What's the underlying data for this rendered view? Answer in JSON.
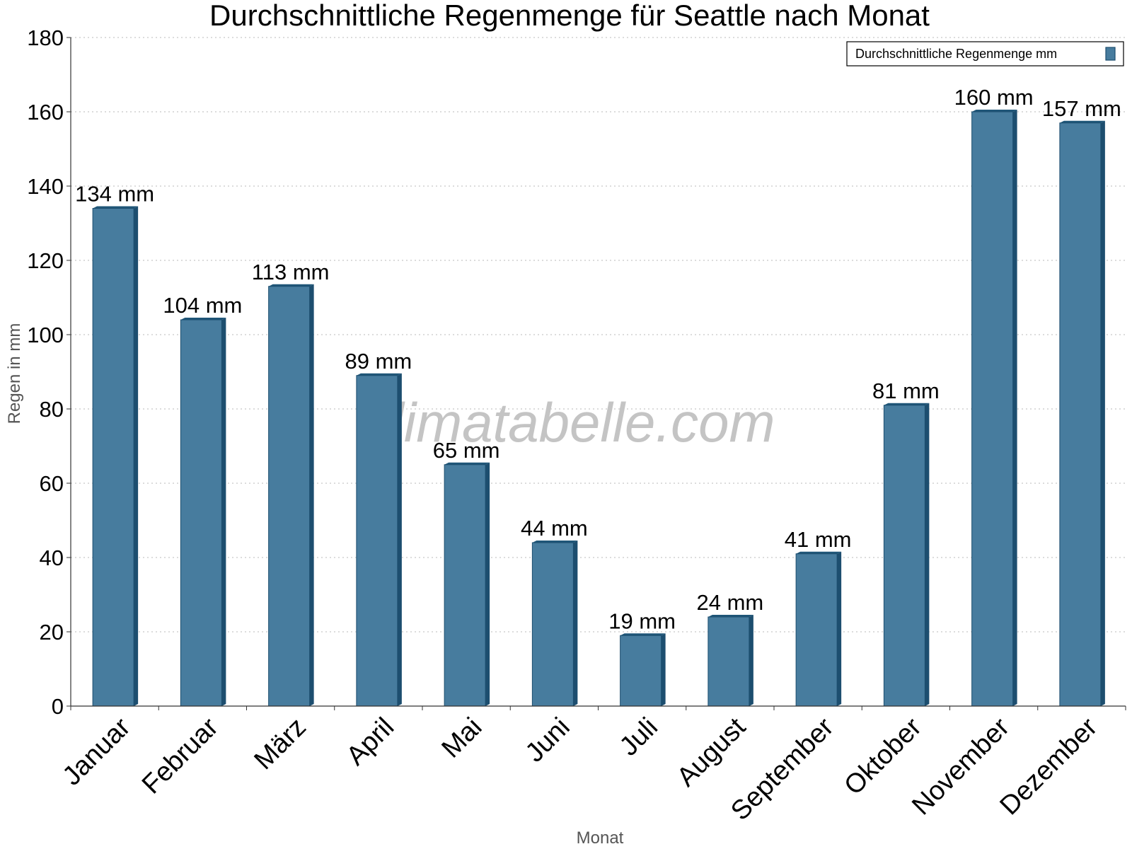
{
  "chart_data": {
    "type": "bar",
    "title": "Durchschnittliche Regenmenge für Seattle nach Monat",
    "xlabel": "Monat",
    "ylabel": "Regen in mm",
    "categories": [
      "Januar",
      "Februar",
      "März",
      "April",
      "Mai",
      "Juni",
      "Juli",
      "August",
      "September",
      "Oktober",
      "November",
      "Dezember"
    ],
    "series": [
      {
        "name": "Durchschnittliche Regenmenge mm",
        "values": [
          134,
          104,
          113,
          89,
          65,
          44,
          19,
          24,
          41,
          81,
          160,
          157
        ],
        "labels": [
          "134 mm",
          "104 mm",
          "113 mm",
          "89 mm",
          "65 mm",
          "44 mm",
          "19 mm",
          "24 mm",
          "41 mm",
          "81 mm",
          "160 mm",
          "157 mm"
        ]
      }
    ],
    "ylim": [
      0,
      180
    ],
    "yticks": [
      0,
      20,
      40,
      60,
      80,
      100,
      120,
      140,
      160,
      180
    ],
    "grid": true,
    "legend_position": "top-right",
    "watermark": "klimatabelle.com",
    "colors": {
      "bar": "#477c9e",
      "bar_edge": "#1d4e6f",
      "bar_top": "#1f5678",
      "grid": "#c8c8c8",
      "axis": "#333333",
      "watermark": "#c4c4c4",
      "axis_title": "#555555"
    }
  }
}
